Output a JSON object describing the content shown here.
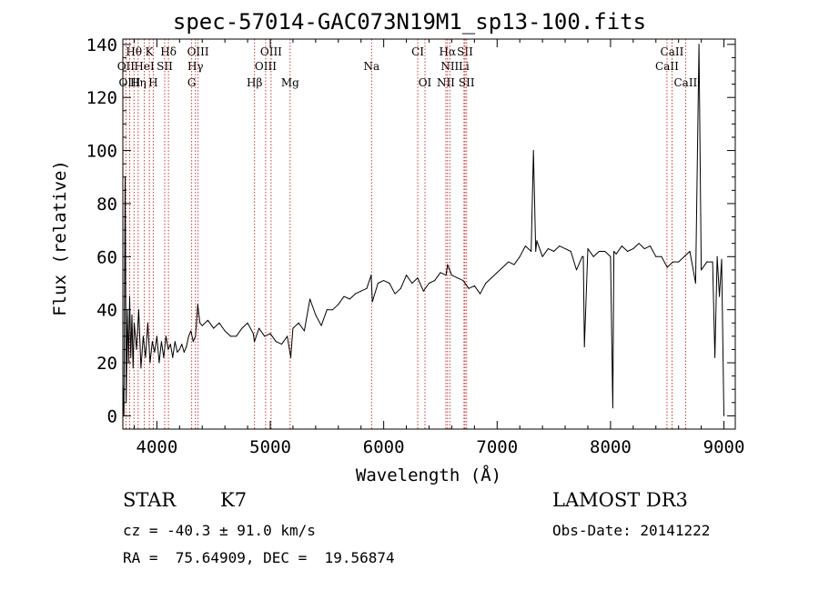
{
  "chart_data": {
    "type": "line",
    "title": "spec-57014-GAC073N19M1_sp13-100.fits",
    "xlabel": "Wavelength (Å)",
    "ylabel": "Flux (relative)",
    "xlim": [
      3700,
      9100
    ],
    "ylim": [
      -5,
      142
    ],
    "xticks": [
      4000,
      5000,
      6000,
      7000,
      8000,
      9000
    ],
    "yticks": [
      0,
      20,
      40,
      60,
      80,
      100,
      120,
      140
    ],
    "series": [
      {
        "name": "flux",
        "x": [
          3700,
          3710,
          3720,
          3730,
          3740,
          3750,
          3760,
          3770,
          3780,
          3790,
          3800,
          3820,
          3840,
          3860,
          3880,
          3900,
          3920,
          3940,
          3960,
          3980,
          4000,
          4020,
          4040,
          4060,
          4080,
          4100,
          4120,
          4140,
          4160,
          4180,
          4200,
          4220,
          4240,
          4260,
          4280,
          4300,
          4320,
          4340,
          4360,
          4380,
          4400,
          4450,
          4500,
          4550,
          4600,
          4650,
          4700,
          4750,
          4800,
          4850,
          4860,
          4900,
          4950,
          5000,
          5050,
          5100,
          5150,
          5180,
          5200,
          5250,
          5300,
          5350,
          5400,
          5450,
          5500,
          5550,
          5600,
          5650,
          5700,
          5750,
          5800,
          5850,
          5890,
          5900,
          5950,
          6000,
          6050,
          6100,
          6150,
          6200,
          6250,
          6300,
          6350,
          6400,
          6450,
          6500,
          6550,
          6563,
          6600,
          6650,
          6700,
          6750,
          6800,
          6850,
          6900,
          6950,
          7000,
          7050,
          7100,
          7150,
          7200,
          7250,
          7300,
          7320,
          7340,
          7350,
          7400,
          7450,
          7500,
          7550,
          7600,
          7650,
          7700,
          7750,
          7760,
          7770,
          7800,
          7850,
          7900,
          7950,
          8000,
          8020,
          8030,
          8050,
          8100,
          8150,
          8200,
          8250,
          8300,
          8350,
          8400,
          8450,
          8500,
          8550,
          8600,
          8650,
          8700,
          8750,
          8780,
          8800,
          8850,
          8900,
          8920,
          8940,
          8960,
          8980,
          9000
        ],
        "values": [
          12,
          0,
          90,
          5,
          40,
          20,
          45,
          22,
          38,
          18,
          35,
          25,
          40,
          18,
          30,
          22,
          35,
          20,
          28,
          24,
          30,
          20,
          28,
          22,
          30,
          25,
          27,
          22,
          28,
          24,
          25,
          27,
          24,
          26,
          30,
          32,
          28,
          30,
          42,
          35,
          34,
          36,
          33,
          35,
          32,
          30,
          30,
          33,
          35,
          31,
          28,
          33,
          30,
          31,
          28,
          27,
          30,
          22,
          33,
          35,
          32,
          44,
          38,
          34,
          40,
          40,
          42,
          45,
          44,
          46,
          47,
          48,
          53,
          43,
          50,
          51,
          50,
          46,
          48,
          53,
          50,
          52,
          47,
          50,
          51,
          54,
          53,
          57,
          53,
          52,
          51,
          48,
          49,
          46,
          50,
          52,
          54,
          56,
          58,
          57,
          60,
          64,
          62,
          100,
          62,
          66,
          60,
          63,
          62,
          64,
          63,
          62,
          55,
          60,
          60,
          26,
          63,
          60,
          62,
          62,
          60,
          3,
          62,
          61,
          64,
          62,
          63,
          65,
          63,
          64,
          60,
          60,
          56,
          58,
          58,
          60,
          62,
          50,
          140,
          55,
          58,
          58,
          22,
          60,
          45,
          59,
          0
        ]
      }
    ],
    "annotations": [
      {
        "label": "Hθ",
        "x": 3798,
        "row": 1
      },
      {
        "label": "K",
        "x": 3934,
        "row": 1
      },
      {
        "label": "Hδ",
        "x": 4102,
        "row": 1
      },
      {
        "label": "OIII",
        "x": 4363,
        "row": 1
      },
      {
        "label": "OIII",
        "x": 5007,
        "row": 1
      },
      {
        "label": "CI",
        "x": 6300,
        "row": 1
      },
      {
        "label": "Hα",
        "x": 6563,
        "row": 1
      },
      {
        "label": "SII",
        "x": 6717,
        "row": 1
      },
      {
        "label": "CaII",
        "x": 8542,
        "row": 1
      },
      {
        "label": "OII",
        "x": 3727,
        "row": 2
      },
      {
        "label": "HeI",
        "x": 3889,
        "row": 2
      },
      {
        "label": "SII",
        "x": 4069,
        "row": 2
      },
      {
        "label": "Hγ",
        "x": 4340,
        "row": 2
      },
      {
        "label": "OIII",
        "x": 4959,
        "row": 2
      },
      {
        "label": "Na",
        "x": 5893,
        "row": 2
      },
      {
        "label": "NII",
        "x": 6583,
        "row": 2
      },
      {
        "label": "Li",
        "x": 6708,
        "row": 2
      },
      {
        "label": "CaII",
        "x": 8498,
        "row": 2
      },
      {
        "label": "OIII",
        "x": 3760,
        "row": 3
      },
      {
        "label": "Hη",
        "x": 3835,
        "row": 3
      },
      {
        "label": "H",
        "x": 3968,
        "row": 3
      },
      {
        "label": "G",
        "x": 4307,
        "row": 3
      },
      {
        "label": "Hβ",
        "x": 4861,
        "row": 3
      },
      {
        "label": "Mg",
        "x": 5175,
        "row": 3
      },
      {
        "label": "OI",
        "x": 6364,
        "row": 3
      },
      {
        "label": "NII",
        "x": 6548,
        "row": 3
      },
      {
        "label": "SII",
        "x": 6731,
        "row": 3
      },
      {
        "label": "CaII",
        "x": 8662,
        "row": 3
      }
    ]
  },
  "info": {
    "object_class": "STAR",
    "subclass": "K7",
    "survey": "LAMOST DR3",
    "cz": "cz = -40.3 ± 91.0 km/s",
    "obs_date": "Obs-Date: 20141222",
    "coords": "RA =  75.64909, DEC =  19.56874"
  }
}
